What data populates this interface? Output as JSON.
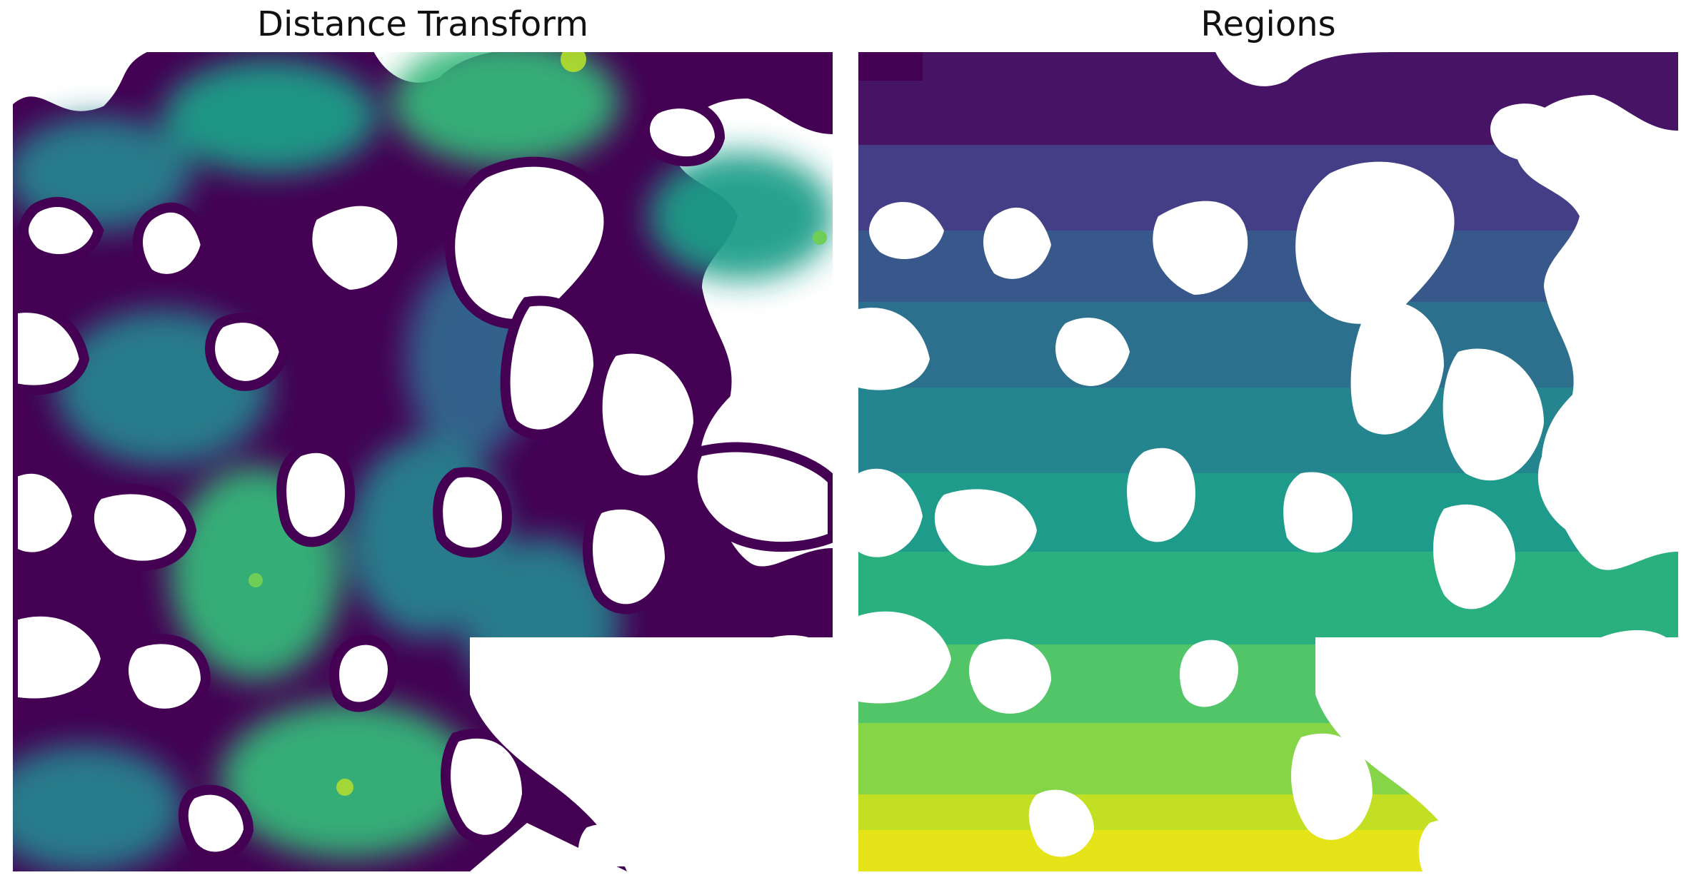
{
  "titles": {
    "left": "Distance Transform",
    "right": "Regions"
  },
  "panels": [
    {
      "id": "distance-transform",
      "kind": "image",
      "colormap": "viridis",
      "background": "#ffffff"
    },
    {
      "id": "regions",
      "kind": "image",
      "colormap": "viridis",
      "background": "#ffffff"
    }
  ],
  "colors": {
    "viridis_dark": "#440154",
    "viridis_purple": "#482878",
    "viridis_blue": "#3e4989",
    "viridis_steel": "#31688e",
    "viridis_teal": "#26828e",
    "viridis_green": "#1f9e89",
    "viridis_mint": "#35b779",
    "viridis_lime": "#6ece58",
    "viridis_yellowgreen": "#b5de2b",
    "viridis_yellow": "#fde725"
  }
}
